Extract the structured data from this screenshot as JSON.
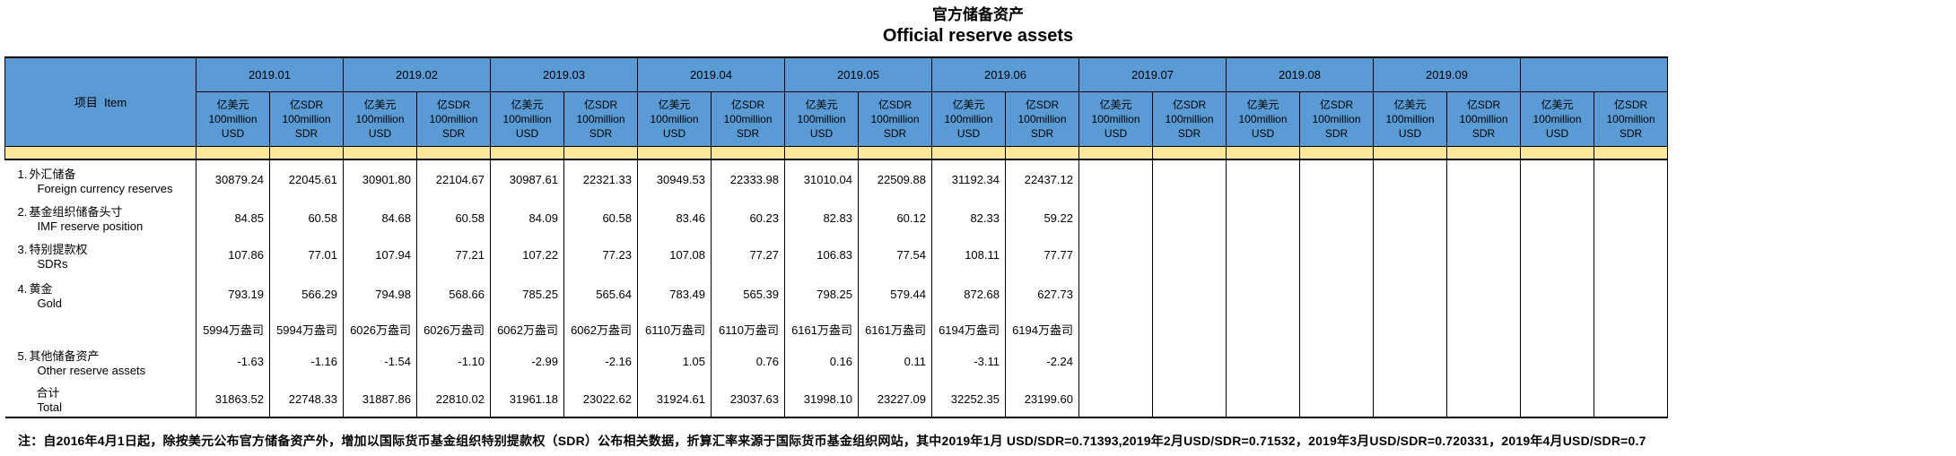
{
  "title": {
    "zh": "官方储备资产",
    "en": "Official reserve assets"
  },
  "table": {
    "item_header": "项目  Item",
    "unit_usd": [
      "亿美元",
      "100million",
      "USD"
    ],
    "unit_sdr": [
      "亿SDR",
      "100million",
      "SDR"
    ],
    "months": [
      "2019.01",
      "2019.02",
      "2019.03",
      "2019.04",
      "2019.05",
      "2019.06",
      "2019.07",
      "2019.08",
      "2019.09",
      ""
    ],
    "rows": [
      {
        "type": "normal",
        "num": "1.",
        "zh": "外汇储备",
        "en": "Foreign currency reserves",
        "values": [
          "30879.24",
          "22045.61",
          "30901.80",
          "22104.67",
          "30987.61",
          "22321.33",
          "30949.53",
          "22333.98",
          "31010.04",
          "22509.88",
          "31192.34",
          "22437.12"
        ]
      },
      {
        "type": "normal",
        "num": "2.",
        "zh": "基金组织储备头寸",
        "en": "IMF reserve position",
        "values": [
          "84.85",
          "60.58",
          "84.68",
          "60.58",
          "84.09",
          "60.58",
          "83.46",
          "60.23",
          "82.83",
          "60.12",
          "82.33",
          "59.22"
        ]
      },
      {
        "type": "normal",
        "num": "3.",
        "zh": "特别提款权",
        "en": "SDRs",
        "values": [
          "107.86",
          "77.01",
          "107.94",
          "77.21",
          "107.22",
          "77.23",
          "107.08",
          "77.27",
          "106.83",
          "77.54",
          "108.11",
          "77.77"
        ]
      },
      {
        "type": "normal",
        "num": "4.",
        "zh": "黄金",
        "en": "Gold",
        "values": [
          "793.19",
          "566.29",
          "794.98",
          "568.66",
          "785.25",
          "565.64",
          "783.49",
          "565.39",
          "798.25",
          "579.44",
          "872.68",
          "627.73"
        ]
      },
      {
        "type": "ounces",
        "num": "",
        "zh": "",
        "en": "",
        "values": [
          "5994万盎司",
          "5994万盎司",
          "6026万盎司",
          "6026万盎司",
          "6062万盎司",
          "6062万盎司",
          "6110万盎司",
          "6110万盎司",
          "6161万盎司",
          "6161万盎司",
          "6194万盎司",
          "6194万盎司"
        ]
      },
      {
        "type": "normal",
        "num": "5.",
        "zh": "其他储备资产",
        "en": "Other reserve assets",
        "values": [
          "-1.63",
          "-1.16",
          "-1.54",
          "-1.10",
          "-2.99",
          "-2.16",
          "1.05",
          "0.76",
          "0.16",
          "0.11",
          "-3.11",
          "-2.24"
        ]
      },
      {
        "type": "total",
        "num": "",
        "zh": "合计",
        "en": "Total",
        "values": [
          "31863.52",
          "22748.33",
          "31887.86",
          "22810.02",
          "31961.18",
          "23022.62",
          "31924.61",
          "23037.63",
          "31998.10",
          "23227.09",
          "32252.35",
          "23199.60"
        ]
      }
    ]
  },
  "footnote": "注：自2016年4月1日起，除按美元公布官方储备资产外，增加以国际货币基金组织特别提款权（SDR）公布相关数据，折算汇率来源于国际货币基金组织网站，其中2019年1月 USD/SDR=0.71393,2019年2月USD/SDR=0.71532，2019年3月USD/SDR=0.720331，2019年4月USD/SDR=0.7",
  "colors": {
    "header_bg": "#5B9BD5",
    "band_bg": "#FFE699",
    "border": "#000000"
  }
}
